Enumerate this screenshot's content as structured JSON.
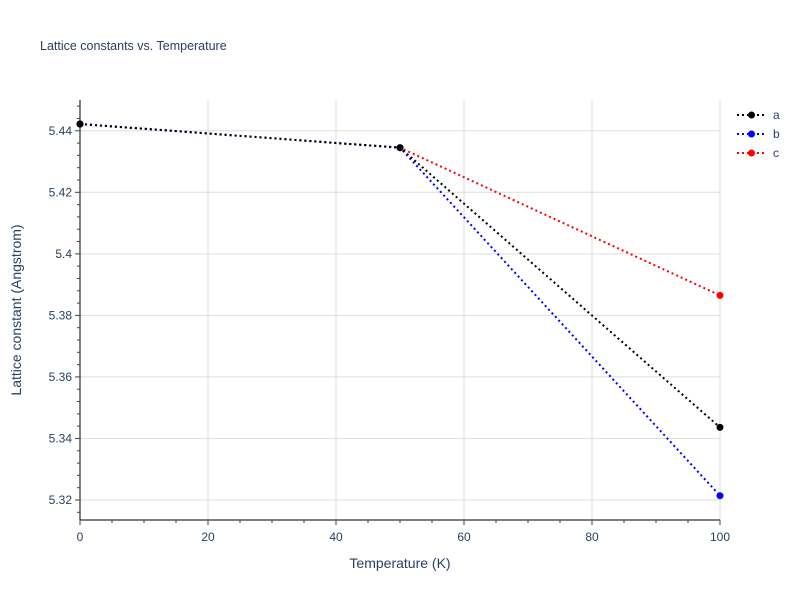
{
  "chart_data": {
    "type": "line",
    "title": "Lattice constants vs. Temperature",
    "xlabel": "Temperature (K)",
    "ylabel": "Lattice constant (Angstrom)",
    "xlim": [
      0,
      100
    ],
    "ylim": [
      5.3135,
      5.45
    ],
    "x_ticks": [
      0,
      20,
      40,
      60,
      80,
      100
    ],
    "y_ticks": [
      5.32,
      5.34,
      5.36,
      5.38,
      5.4,
      5.42,
      5.44
    ],
    "y_tick_labels": [
      "5.32",
      "5.34",
      "5.36",
      "5.38",
      "5.4",
      "5.42",
      "5.44"
    ],
    "grid": true,
    "legend_position": "top-right",
    "series": [
      {
        "name": "a",
        "color": "#000000",
        "x": [
          0,
          50,
          100
        ],
        "y": [
          5.4422,
          5.4345,
          5.3436
        ]
      },
      {
        "name": "b",
        "color": "#0000ff",
        "x": [
          0,
          50,
          100
        ],
        "y": [
          5.4422,
          5.4345,
          5.3214
        ]
      },
      {
        "name": "c",
        "color": "#ff0000",
        "x": [
          0,
          50,
          100
        ],
        "y": [
          5.4422,
          5.4345,
          5.3865
        ]
      }
    ]
  }
}
